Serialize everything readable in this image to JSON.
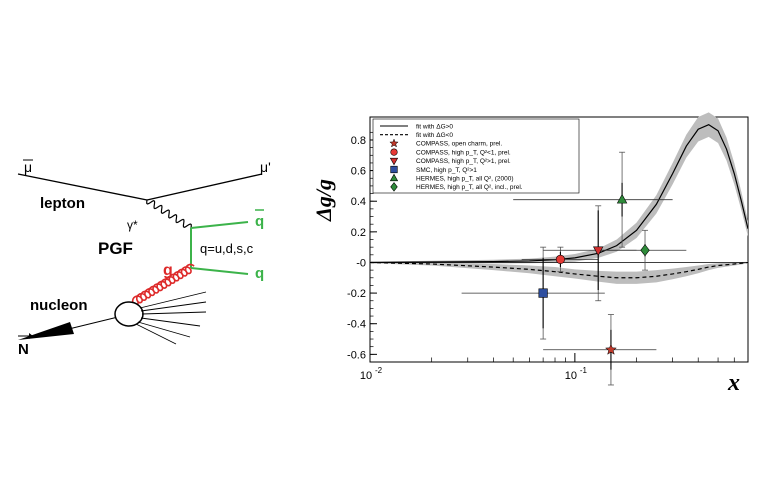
{
  "colors": {
    "green": "#3cb34a",
    "red": "#dd2a2a",
    "band": "#bdbdbd",
    "star": "#c0392b",
    "circle": "#e53935",
    "triangle_down": "#d32f2f",
    "square": "#2f4f9f",
    "triangle_up": "#2e8b3a",
    "diamond": "#2e8b3a"
  },
  "diagram": {
    "mu_in": "μ",
    "mu_out": "μ'",
    "lepton": "lepton",
    "gamma": "γ*",
    "pgf": "PGF",
    "q_bar": "q",
    "q": "q",
    "flavors": "q=u,d,s,c",
    "g": "g",
    "nucleon": "nucleon",
    "N": "N"
  },
  "chart_data": {
    "type": "scatter",
    "xscale": "log",
    "xlim": [
      0.01,
      0.7
    ],
    "ylim": [
      -0.65,
      0.95
    ],
    "xlabel": "x",
    "ylabel": "Δg/g",
    "xticks": [
      {
        "value": 0.01,
        "label": "10",
        "exp": "-2"
      },
      {
        "value": 0.1,
        "label": "10",
        "exp": "-1"
      }
    ],
    "yticks": [
      -0.6,
      -0.4,
      -0.2,
      0,
      0.2,
      0.4,
      0.6,
      0.8
    ],
    "ytick_labels": [
      "-0.6",
      "-0.4",
      "-0.2",
      "-0",
      "0.2",
      "0.4",
      "0.6",
      "0.8"
    ],
    "legend_position": "top-left",
    "legend": [
      {
        "marker": "solid-line",
        "label": "fit with ΔG>0"
      },
      {
        "marker": "dashed-line",
        "label": "fit with ΔG<0"
      },
      {
        "marker": "star",
        "label": "COMPASS, open charm, prel."
      },
      {
        "marker": "circle",
        "label": "COMPASS, high p_T, Q²<1, prel."
      },
      {
        "marker": "triangle-down",
        "label": "COMPASS, high p_T, Q²>1, prel."
      },
      {
        "marker": "square",
        "label": "SMC, high p_T, Q²>1"
      },
      {
        "marker": "triangle-up",
        "label": "HERMES, high p_T, all Q², (2000)"
      },
      {
        "marker": "diamond",
        "label": "HERMES, high p_T, all Q², incl., prel."
      }
    ],
    "points": [
      {
        "series": "COMPASS, open charm, prel.",
        "marker": "star",
        "x": 0.15,
        "y": -0.57,
        "x_err": [
          0.07,
          0.25
        ],
        "y_err_stat": [
          -0.7,
          -0.44
        ],
        "y_err_tot": [
          -0.8,
          -0.34
        ]
      },
      {
        "series": "COMPASS, high p_T, Q²<1, prel.",
        "marker": "circle",
        "x": 0.085,
        "y": 0.02,
        "x_err": [
          0.055,
          0.13
        ],
        "y_err_stat": [
          -0.03,
          0.07
        ],
        "y_err_tot": [
          -0.06,
          0.1
        ]
      },
      {
        "series": "COMPASS, high p_T, Q²>1, prel.",
        "marker": "triangle-down",
        "x": 0.13,
        "y": 0.08,
        "x_err": [
          0.07,
          0.2
        ],
        "y_err_stat": [
          -0.18,
          0.34
        ],
        "y_err_tot": [
          -0.25,
          0.37
        ]
      },
      {
        "series": "SMC, high p_T, Q²>1",
        "marker": "square",
        "x": 0.07,
        "y": -0.2,
        "x_err": [
          0.028,
          0.14
        ],
        "y_err_stat": [
          -0.43,
          0.03
        ],
        "y_err_tot": [
          -0.5,
          0.1
        ]
      },
      {
        "series": "HERMES, high p_T, all Q², (2000)",
        "marker": "triangle-up",
        "x": 0.17,
        "y": 0.41,
        "x_err": [
          0.05,
          0.3
        ],
        "y_err_stat": [
          0.3,
          0.52
        ],
        "y_err_tot": [
          0.1,
          0.72
        ]
      },
      {
        "series": "HERMES, high p_T, all Q², incl., prel.",
        "marker": "diamond",
        "x": 0.22,
        "y": 0.08,
        "x_err": [
          0.13,
          0.35
        ],
        "y_err_stat": [
          0.04,
          0.12
        ],
        "y_err_tot": [
          -0.05,
          0.21
        ]
      }
    ],
    "fit_positive": {
      "x": [
        0.01,
        0.02,
        0.04,
        0.06,
        0.08,
        0.1,
        0.13,
        0.16,
        0.2,
        0.25,
        0.3,
        0.35,
        0.4,
        0.45,
        0.5,
        0.55,
        0.6,
        0.65,
        0.7
      ],
      "y": [
        0.0,
        0.003,
        0.006,
        0.01,
        0.018,
        0.03,
        0.06,
        0.11,
        0.21,
        0.38,
        0.58,
        0.76,
        0.87,
        0.9,
        0.86,
        0.74,
        0.58,
        0.4,
        0.22
      ],
      "band_half_width": [
        0.005,
        0.008,
        0.012,
        0.015,
        0.02,
        0.025,
        0.03,
        0.04,
        0.05,
        0.06,
        0.07,
        0.075,
        0.08,
        0.08,
        0.08,
        0.075,
        0.07,
        0.06,
        0.05
      ]
    },
    "fit_negative": {
      "x": [
        0.01,
        0.02,
        0.04,
        0.06,
        0.08,
        0.1,
        0.13,
        0.16,
        0.2,
        0.25,
        0.3,
        0.35,
        0.4,
        0.45,
        0.5,
        0.55,
        0.6,
        0.65,
        0.7
      ],
      "y": [
        0.0,
        -0.01,
        -0.03,
        -0.045,
        -0.06,
        -0.075,
        -0.09,
        -0.1,
        -0.1,
        -0.09,
        -0.075,
        -0.06,
        -0.045,
        -0.03,
        -0.02,
        -0.015,
        -0.01,
        -0.005,
        0.0
      ],
      "band_half_width": [
        0.005,
        0.01,
        0.02,
        0.025,
        0.03,
        0.03,
        0.035,
        0.04,
        0.04,
        0.04,
        0.035,
        0.03,
        0.025,
        0.02,
        0.015,
        0.012,
        0.01,
        0.008,
        0.005
      ]
    }
  }
}
